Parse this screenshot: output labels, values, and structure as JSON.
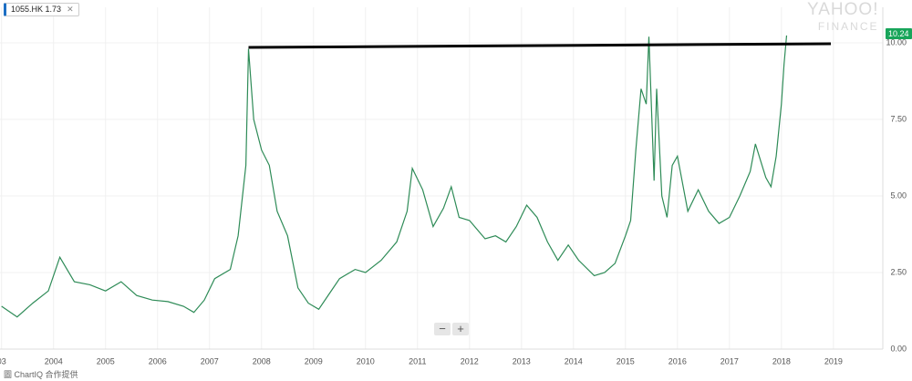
{
  "chart_data": {
    "type": "line",
    "symbol": "1055.HK",
    "symbol_value": 1.73,
    "logo": "YAHOO!",
    "logo_sub": "FINANCE",
    "attribution": "圖 ChartIQ 合作提供",
    "color": "#2e8b57",
    "grid": true,
    "x": [
      2003.0,
      2003.3,
      2003.6,
      2003.9,
      2004.12,
      2004.4,
      2004.7,
      2005.0,
      2005.3,
      2005.6,
      2005.9,
      2006.2,
      2006.5,
      2006.7,
      2006.9,
      2007.1,
      2007.4,
      2007.55,
      2007.7,
      2007.75,
      2007.85,
      2008.0,
      2008.15,
      2008.3,
      2008.5,
      2008.7,
      2008.9,
      2009.1,
      2009.3,
      2009.5,
      2009.8,
      2010.0,
      2010.3,
      2010.6,
      2010.8,
      2010.9,
      2011.1,
      2011.3,
      2011.5,
      2011.65,
      2011.8,
      2012.0,
      2012.3,
      2012.5,
      2012.7,
      2012.9,
      2013.1,
      2013.3,
      2013.5,
      2013.7,
      2013.9,
      2014.1,
      2014.4,
      2014.6,
      2014.8,
      2015.0,
      2015.1,
      2015.2,
      2015.3,
      2015.4,
      2015.45,
      2015.55,
      2015.6,
      2015.7,
      2015.8,
      2015.9,
      2016.0,
      2016.2,
      2016.4,
      2016.6,
      2016.8,
      2017.0,
      2017.2,
      2017.4,
      2017.5,
      2017.7,
      2017.8,
      2017.9,
      2018.0,
      2018.05,
      2018.1
    ],
    "values": [
      1.4,
      1.05,
      1.5,
      1.9,
      3.0,
      2.2,
      2.1,
      1.9,
      2.2,
      1.75,
      1.6,
      1.55,
      1.4,
      1.2,
      1.6,
      2.3,
      2.6,
      3.7,
      6.0,
      9.8,
      7.5,
      6.5,
      6.0,
      4.5,
      3.7,
      2.0,
      1.5,
      1.3,
      1.8,
      2.3,
      2.6,
      2.5,
      2.9,
      3.5,
      4.5,
      5.9,
      5.2,
      4.0,
      4.6,
      5.3,
      4.3,
      4.2,
      3.6,
      3.7,
      3.5,
      4.0,
      4.7,
      4.3,
      3.5,
      2.9,
      3.4,
      2.9,
      2.4,
      2.5,
      2.8,
      3.7,
      4.2,
      6.5,
      8.5,
      8.0,
      10.2,
      5.5,
      8.5,
      5.0,
      4.3,
      6.0,
      6.3,
      4.5,
      5.2,
      4.5,
      4.1,
      4.3,
      5.0,
      5.8,
      6.7,
      5.6,
      5.3,
      6.3,
      8.0,
      9.3,
      10.24
    ],
    "trendline": {
      "x": [
        2007.75,
        2018.95
      ],
      "values": [
        9.85,
        9.97
      ]
    },
    "xlim": [
      2002.97,
      2019.95
    ],
    "xticks": [
      {
        "value": 2003,
        "label": "03"
      },
      2004,
      2005,
      2006,
      2007,
      2008,
      2009,
      2010,
      2011,
      2012,
      2013,
      2014,
      2015,
      2016,
      2017,
      2018,
      2019
    ],
    "ylim": [
      0,
      11.16
    ],
    "yticks": [
      {
        "value": 0,
        "label": "0.00"
      },
      {
        "value": 2.5,
        "label": "2.50"
      },
      {
        "value": 5,
        "label": "5.00"
      },
      {
        "value": 7.5,
        "label": "7.50"
      },
      {
        "value": 10,
        "label": "10.00"
      }
    ]
  }
}
